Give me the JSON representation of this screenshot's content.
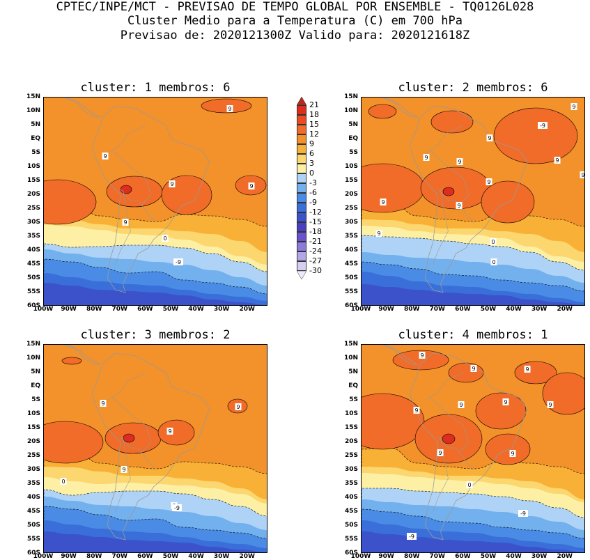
{
  "title": {
    "line1": "CPTEC/INPE/MCT - PREVISAO DE TEMPO GLOBAL POR ENSEMBLE - TQ0126L028",
    "line2": "Cluster Medio para a Temperatura (C) em 700 hPa",
    "line3": "Previsao de: 2020121300Z   Valido para: 2020121618Z"
  },
  "colors": {
    "land_outline": "#9a9a9a",
    "contour": "#000000"
  },
  "chart_data": [
    {
      "type": "heatmap",
      "title": "cluster: 1   membros: 6",
      "variable": "Temperatura (C) em 700 hPa",
      "x_labels": [
        "100W",
        "90W",
        "80W",
        "70W",
        "60W",
        "50W",
        "40W",
        "30W",
        "20W"
      ],
      "y_labels": [
        "15N",
        "10N",
        "5N",
        "EQ",
        "5S",
        "10S",
        "15S",
        "20S",
        "25S",
        "30S",
        "35S",
        "40S",
        "45S",
        "50S",
        "55S",
        "60S"
      ],
      "xlim": [
        -100,
        -12
      ],
      "ylim": [
        -60,
        15
      ],
      "contour_labels": [
        "9",
        "9",
        "9",
        "9",
        "9",
        "0",
        "-9"
      ]
    },
    {
      "type": "heatmap",
      "title": "cluster: 2   membros: 6",
      "variable": "Temperatura (C) em 700 hPa",
      "x_labels": [
        "100W",
        "90W",
        "80W",
        "70W",
        "60W",
        "50W",
        "40W",
        "30W",
        "20W"
      ],
      "y_labels": [
        "15N",
        "10N",
        "5N",
        "EQ",
        "5S",
        "10S",
        "15S",
        "20S",
        "25S",
        "30S",
        "35S",
        "40S",
        "45S",
        "50S",
        "55S",
        "60S"
      ],
      "xlim": [
        -100,
        -12
      ],
      "ylim": [
        -60,
        15
      ],
      "contour_labels": [
        "9",
        "9",
        "9",
        "9",
        "9",
        "9",
        "9",
        "9",
        "9",
        "9",
        "0",
        "0",
        "-9"
      ]
    },
    {
      "type": "heatmap",
      "title": "cluster: 3   membros: 2",
      "variable": "Temperatura (C) em 700 hPa",
      "x_labels": [
        "100W",
        "90W",
        "80W",
        "70W",
        "60W",
        "50W",
        "40W",
        "30W",
        "20W"
      ],
      "y_labels": [
        "15N",
        "10N",
        "5N",
        "EQ",
        "5S",
        "10S",
        "15S",
        "20S",
        "25S",
        "30S",
        "35S",
        "40S",
        "45S",
        "50S",
        "55S",
        "60S"
      ],
      "xlim": [
        -100,
        -12
      ],
      "ylim": [
        -60,
        15
      ],
      "contour_labels": [
        "9",
        "9",
        "9",
        "9",
        "0",
        "0",
        "-9"
      ]
    },
    {
      "type": "heatmap",
      "title": "cluster: 4   membros: 1",
      "variable": "Temperatura (C) em 700 hPa",
      "x_labels": [
        "100W",
        "90W",
        "80W",
        "70W",
        "60W",
        "50W",
        "40W",
        "30W",
        "20W"
      ],
      "y_labels": [
        "15N",
        "10N",
        "5N",
        "EQ",
        "5S",
        "10S",
        "15S",
        "20S",
        "25S",
        "30S",
        "35S",
        "40S",
        "45S",
        "50S",
        "55S",
        "60S"
      ],
      "xlim": [
        -100,
        -12
      ],
      "ylim": [
        -60,
        15
      ],
      "contour_labels": [
        "9",
        "9",
        "9",
        "9",
        "9",
        "9",
        "9",
        "9",
        "9",
        "0",
        "-9",
        "-9"
      ]
    }
  ],
  "colorbar": {
    "levels": [
      "21",
      "18",
      "15",
      "12",
      "9",
      "6",
      "3",
      "0",
      "-3",
      "-6",
      "-9",
      "-12",
      "-15",
      "-18",
      "-21",
      "-24",
      "-27",
      "-30"
    ],
    "colors": [
      "#b8281f",
      "#de2d1f",
      "#ec4a22",
      "#f06c28",
      "#f3912a",
      "#f8b136",
      "#fcd66f",
      "#fdf0a5",
      "#aed3f6",
      "#72b0ee",
      "#4a8ce5",
      "#3a6fd9",
      "#3b52cb",
      "#4a3fc0",
      "#6a52cc",
      "#8d7ad9",
      "#b3a7e6",
      "#d6cff2",
      "#efeafa"
    ]
  }
}
